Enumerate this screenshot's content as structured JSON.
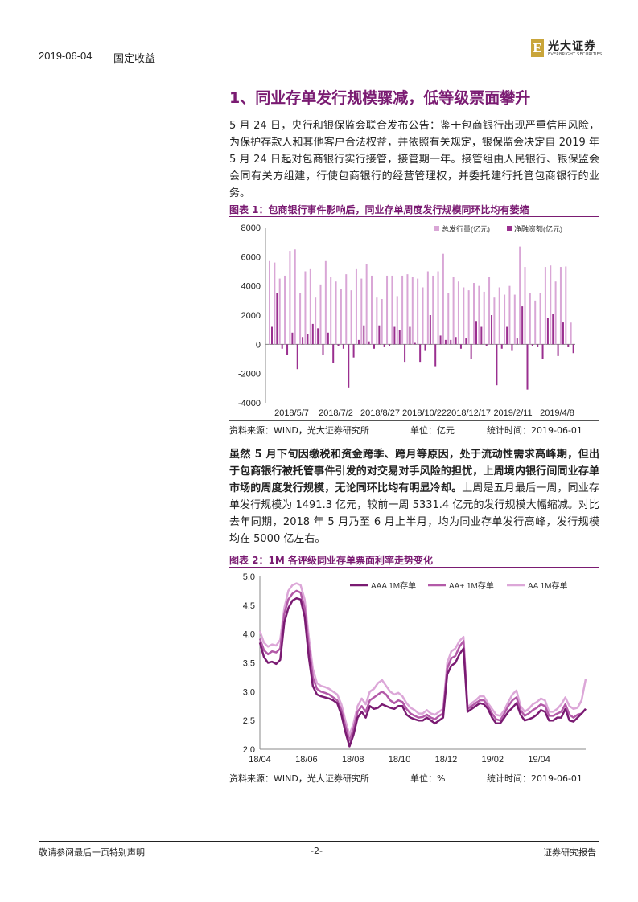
{
  "header": {
    "date": "2019-06-04",
    "category": "固定收益"
  },
  "logo": {
    "mark": "E",
    "name": "光大证券",
    "en": "EVERBRIGHT SECURITIES"
  },
  "section_title": "1、同业存单发行规模骤减，低等级票面攀升",
  "paragraph1": "5 月 24 日，央行和银保监会联合发布公告：鉴于包商银行出现严重信用风险，为保护存款人和其他客户合法权益，并依照有关规定，银保监会决定自 2019 年 5 月 24 日起对包商银行实行接管，接管期一年。接管组由人民银行、银保监会会同有关方组建，行使包商银行的经营管理权，并委托建行托管包商银行的业务。",
  "figure1": {
    "title": "图表 1：包商银行事件影响后，同业存单周度发行规模同环比均有萎缩",
    "source": "资料来源：WIND，光大证券研究所",
    "unit": "单位：亿元",
    "stat": "统计时间：2019-06-01"
  },
  "paragraph2": {
    "bold": "虽然 5 月下旬因缴税和资金跨季、跨月等原因，处于流动性需求高峰期，但出于包商银行被托管事件引发的对交易对手风险的担忧，上周境内银行间同业存单市场的周度发行规模，无论同环比均有明显冷却。",
    "normal": "上周是五月最后一周，同业存单发行规模为 1491.3 亿元，较前一周 5331.4 亿元的发行规模大幅缩减。对比去年同期，2018 年 5 月乃至 6 月上半月，均为同业存单发行高峰，发行规模均在 5000 亿左右。"
  },
  "figure2": {
    "title": "图表 2：1M 各评级同业存单票面利率走势变化",
    "source": "资料来源：WIND，光大证券研究所",
    "unit": "单位：%",
    "stat": "统计时间：2019-06-01"
  },
  "footer": {
    "left": "敬请参阅最后一页特别声明",
    "center": "-2-",
    "right": "证券研究报告"
  },
  "chart_data": [
    {
      "type": "bar",
      "ylim": [
        -4000,
        8000
      ],
      "yticks": [
        -4000,
        -2000,
        0,
        2000,
        4000,
        6000,
        8000
      ],
      "xtick_labels": [
        "2018/5/7",
        "2018/7/2",
        "2018/8/27",
        "2018/10/22",
        "2018/12/17",
        "2019/2/11",
        "2019/4/8"
      ],
      "legend_position": "top-right",
      "series": [
        {
          "name": "总发行量(亿元)",
          "color": "#d9a6d6",
          "values": [
            5700,
            5600,
            4500,
            4700,
            6400,
            6500,
            3500,
            5000,
            5200,
            3200,
            4100,
            5700,
            4600,
            4300,
            3800,
            4800,
            3700,
            5200,
            4500,
            5500,
            4700,
            3200,
            3100,
            4700,
            4700,
            3300,
            4700,
            4800,
            4600,
            4500,
            3900,
            5000,
            4700,
            5000,
            6200,
            3500,
            4600,
            4300,
            3900,
            3700,
            4200,
            4000,
            3600,
            4600,
            3200,
            3900,
            3400,
            4000,
            3400,
            6700,
            5300,
            3500,
            3000,
            3500,
            5300,
            5400,
            4300,
            5300,
            5331.4,
            1491.3
          ]
        },
        {
          "name": "净融资额(亿元)",
          "color": "#9a2f8f",
          "values": [
            1200,
            3500,
            -300,
            -700,
            800,
            -1700,
            500,
            700,
            1400,
            1100,
            -700,
            800,
            -1300,
            -100,
            -300,
            -3000,
            -900,
            300,
            1300,
            200,
            -300,
            1300,
            -200,
            -100,
            1200,
            1000,
            -1200,
            1200,
            100,
            -1200,
            -400,
            2000,
            -1500,
            600,
            300,
            300,
            500,
            -300,
            400,
            -1000,
            1600,
            1200,
            -100,
            2000,
            -2800,
            -300,
            1200,
            -400,
            400,
            2600,
            -3100,
            -100,
            -200,
            -1000,
            1800,
            2100,
            -800,
            1500,
            -200,
            -600
          ]
        }
      ]
    },
    {
      "type": "line",
      "ylim": [
        2.0,
        5.0
      ],
      "yticks": [
        2.0,
        2.5,
        3.0,
        3.5,
        4.0,
        4.5,
        5.0
      ],
      "xtick_labels": [
        "18/04",
        "18/06",
        "18/08",
        "18/10",
        "18/12",
        "19/02",
        "19/04"
      ],
      "legend_position": "top",
      "x": [
        "18/04",
        "18/04",
        "18/04",
        "18/05",
        "18/05",
        "18/05",
        "18/05",
        "18/05",
        "18/05",
        "18/06",
        "18/06",
        "18/06",
        "18/06",
        "18/06",
        "18/06",
        "18/07",
        "18/07",
        "18/07",
        "18/07",
        "18/07",
        "18/07",
        "18/08",
        "18/08",
        "18/08",
        "18/08",
        "18/08",
        "18/08",
        "18/09",
        "18/09",
        "18/09",
        "18/09",
        "18/09",
        "18/09",
        "18/10",
        "18/10",
        "18/10",
        "18/10",
        "18/10",
        "18/10",
        "18/11",
        "18/11",
        "18/11",
        "18/11",
        "18/11",
        "18/11",
        "18/12",
        "18/12",
        "18/12",
        "18/12",
        "18/12",
        "18/12",
        "19/01",
        "19/01",
        "19/01",
        "19/01",
        "19/01",
        "19/01",
        "19/02",
        "19/02",
        "19/02",
        "19/02",
        "19/02",
        "19/02",
        "19/03",
        "19/03",
        "19/03",
        "19/03",
        "19/03",
        "19/03",
        "19/04",
        "19/04",
        "19/04",
        "19/04",
        "19/04",
        "19/04",
        "19/05",
        "19/05",
        "19/05",
        "19/05",
        "19/05",
        "19/05"
      ],
      "series": [
        {
          "name": "AAA 1M存单",
          "color": "#7a1b72",
          "values": [
            3.85,
            3.6,
            3.5,
            3.52,
            3.48,
            3.55,
            4.2,
            4.45,
            4.58,
            4.62,
            4.6,
            4.3,
            3.6,
            3.1,
            2.95,
            2.92,
            2.9,
            2.88,
            2.85,
            2.8,
            2.6,
            2.3,
            2.05,
            2.25,
            2.55,
            2.65,
            2.55,
            2.75,
            2.7,
            2.72,
            2.78,
            2.75,
            2.72,
            2.7,
            2.75,
            2.75,
            2.6,
            2.55,
            2.52,
            2.5,
            2.5,
            2.55,
            2.5,
            2.45,
            2.5,
            2.55,
            3.3,
            3.45,
            3.5,
            3.65,
            3.75,
            2.65,
            2.7,
            2.75,
            2.8,
            2.78,
            2.7,
            2.55,
            2.45,
            2.45,
            2.55,
            2.65,
            2.72,
            2.8,
            2.6,
            2.5,
            2.52,
            2.55,
            2.6,
            2.68,
            2.65,
            2.5,
            2.5,
            2.55,
            2.55,
            2.7,
            2.5,
            2.48,
            2.55,
            2.62,
            2.7
          ]
        },
        {
          "name": "AA+ 1M存单",
          "color": "#b35aa8",
          "values": [
            3.92,
            3.72,
            3.65,
            3.7,
            3.68,
            3.75,
            4.35,
            4.6,
            4.7,
            4.75,
            4.72,
            4.45,
            3.8,
            3.25,
            3.05,
            3.0,
            2.98,
            2.95,
            2.9,
            2.85,
            2.68,
            2.4,
            2.15,
            2.35,
            2.65,
            2.75,
            2.65,
            2.85,
            2.9,
            2.95,
            3.0,
            2.95,
            2.85,
            2.8,
            2.85,
            2.82,
            2.7,
            2.62,
            2.58,
            2.55,
            2.56,
            2.6,
            2.55,
            2.52,
            2.58,
            2.62,
            3.4,
            3.58,
            3.62,
            3.78,
            3.88,
            2.7,
            2.75,
            2.8,
            2.85,
            2.85,
            2.75,
            2.62,
            2.52,
            2.5,
            2.62,
            2.75,
            2.85,
            2.9,
            2.68,
            2.58,
            2.62,
            2.68,
            2.72,
            2.78,
            2.75,
            2.58,
            2.58,
            2.62,
            2.65,
            2.78,
            2.6,
            2.55,
            2.6,
            2.62,
            2.7
          ]
        },
        {
          "name": "AA 1M存单",
          "color": "#dca7d8",
          "values": [
            4.05,
            3.85,
            3.78,
            3.82,
            3.8,
            3.9,
            4.45,
            4.75,
            4.85,
            4.88,
            4.85,
            4.6,
            3.95,
            3.4,
            3.15,
            3.1,
            3.08,
            3.05,
            3.0,
            2.95,
            2.78,
            2.5,
            2.25,
            2.45,
            2.75,
            2.88,
            2.78,
            3.0,
            3.05,
            3.15,
            3.2,
            3.1,
            3.0,
            2.95,
            2.98,
            2.92,
            2.8,
            2.72,
            2.68,
            2.62,
            2.62,
            2.68,
            2.62,
            2.6,
            2.65,
            2.7,
            3.5,
            3.7,
            3.75,
            3.88,
            3.95,
            2.72,
            2.8,
            2.85,
            2.92,
            2.92,
            2.8,
            2.7,
            2.6,
            2.58,
            2.68,
            2.82,
            2.95,
            3.02,
            2.75,
            2.65,
            2.7,
            2.78,
            2.82,
            2.88,
            2.85,
            2.65,
            2.65,
            2.7,
            2.78,
            2.9,
            2.75,
            2.7,
            2.72,
            2.85,
            3.22
          ]
        }
      ]
    }
  ]
}
